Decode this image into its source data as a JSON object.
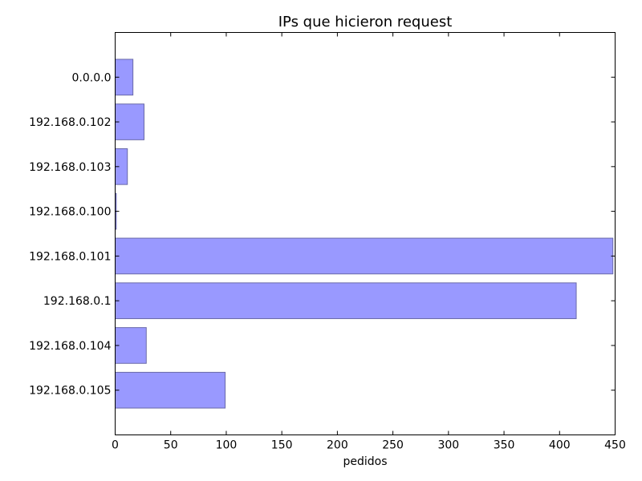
{
  "chart_data": {
    "type": "bar",
    "orientation": "horizontal",
    "title": "IPs que hicieron request",
    "xlabel": "pedidos",
    "ylabel": "",
    "categories": [
      "0.0.0.0",
      "192.168.0.102",
      "192.168.0.103",
      "192.168.0.100",
      "192.168.0.101",
      "192.168.0.1",
      "192.168.0.104",
      "192.168.0.105"
    ],
    "values": [
      16,
      26,
      11,
      1,
      448,
      415,
      28,
      99
    ],
    "xlim": [
      0,
      450
    ],
    "xticks": [
      0,
      50,
      100,
      150,
      200,
      250,
      300,
      350,
      400,
      450
    ],
    "grid": false,
    "bar_color": "#9999ff",
    "bar_edge_color": "#6a6aa8"
  }
}
